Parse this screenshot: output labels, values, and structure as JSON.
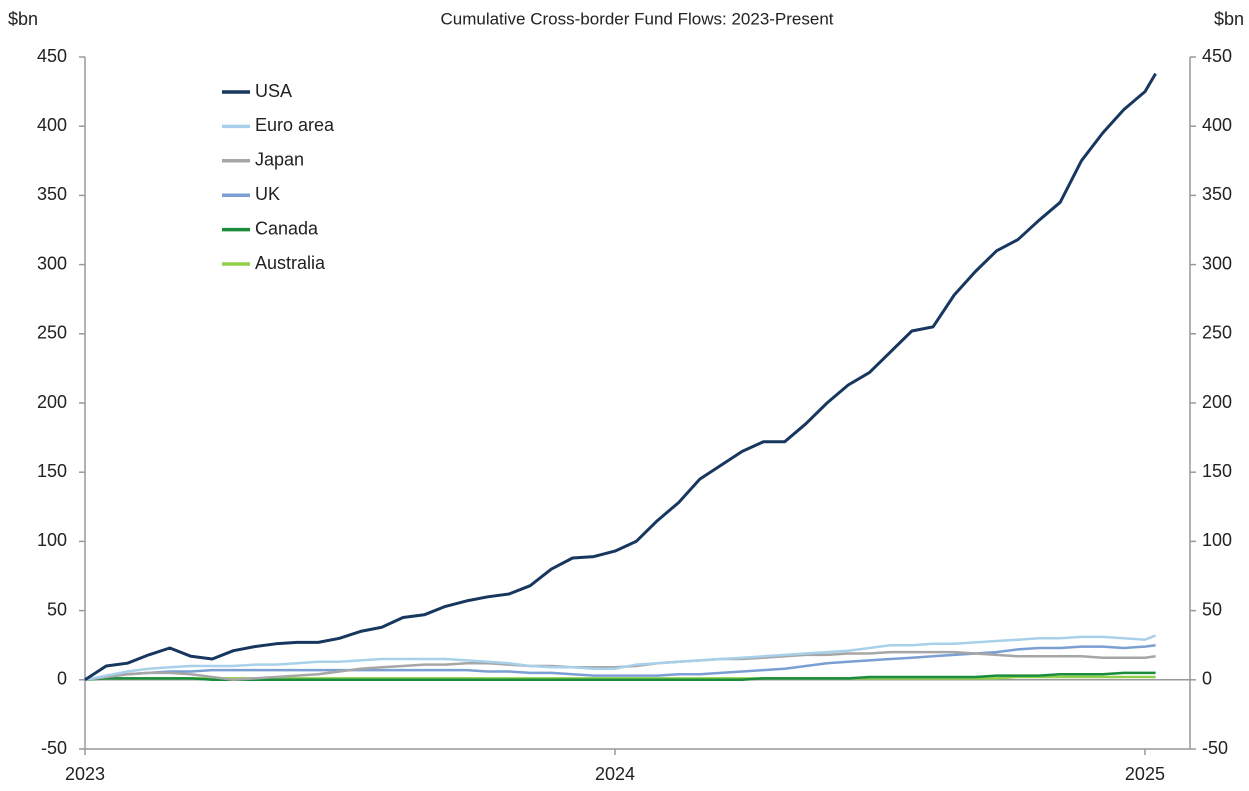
{
  "chart_data": {
    "type": "line",
    "title": "Cumulative Cross-border Fund Flows: 2023-Present",
    "y_label": "$bn",
    "y2_label": "$bn",
    "x": [
      2023,
      2023.04,
      2023.08,
      2023.12,
      2023.16,
      2023.2,
      2023.24,
      2023.28,
      2023.32,
      2023.36,
      2023.4,
      2023.44,
      2023.48,
      2023.52,
      2023.56,
      2023.6,
      2023.64,
      2023.68,
      2023.72,
      2023.76,
      2023.8,
      2023.84,
      2023.88,
      2023.92,
      2023.96,
      2024,
      2024.04,
      2024.08,
      2024.12,
      2024.16,
      2024.2,
      2024.24,
      2024.28,
      2024.32,
      2024.36,
      2024.4,
      2024.44,
      2024.48,
      2024.52,
      2024.56,
      2024.6,
      2024.64,
      2024.68,
      2024.72,
      2024.76,
      2024.8,
      2024.84,
      2024.88,
      2024.92,
      2024.96,
      2025,
      2025.02
    ],
    "xlim": [
      2023,
      2025.085
    ],
    "xticks": [
      2023,
      2024,
      2025
    ],
    "ylim": [
      -50,
      450
    ],
    "yticks": [
      -50,
      0,
      50,
      100,
      150,
      200,
      250,
      300,
      350,
      400,
      450
    ],
    "y2lim": [
      -50,
      450
    ],
    "y2ticks": [
      -50,
      0,
      50,
      100,
      150,
      200,
      250,
      300,
      350,
      400,
      450
    ],
    "legend": "upper left",
    "series": [
      {
        "name": "USA",
        "color": "#17375e",
        "values": [
          0,
          10,
          12,
          18,
          23,
          17,
          15,
          21,
          24,
          26,
          27,
          27,
          30,
          35,
          38,
          45,
          47,
          53,
          57,
          60,
          62,
          68,
          80,
          88,
          89,
          93,
          100,
          115,
          128,
          145,
          155,
          165,
          172,
          172,
          185,
          200,
          213,
          222,
          237,
          252,
          255,
          278,
          295,
          310,
          318,
          332,
          345,
          375,
          395,
          412,
          425,
          438
        ]
      },
      {
        "name": "Euro area",
        "color": "#a9d0ea",
        "values": [
          0,
          3,
          6,
          8,
          9,
          10,
          10,
          10,
          11,
          11,
          12,
          13,
          13,
          14,
          15,
          15,
          15,
          15,
          14,
          13,
          12,
          10,
          9,
          9,
          8,
          8,
          11,
          12,
          13,
          14,
          15,
          16,
          17,
          18,
          19,
          20,
          21,
          23,
          25,
          25,
          26,
          26,
          27,
          28,
          29,
          30,
          30,
          31,
          31,
          30,
          29,
          32
        ]
      },
      {
        "name": "Japan",
        "color": "#a6a6a6",
        "values": [
          0,
          2,
          4,
          5,
          5,
          4,
          2,
          0,
          1,
          2,
          3,
          4,
          6,
          8,
          9,
          10,
          11,
          11,
          12,
          12,
          11,
          10,
          10,
          9,
          9,
          9,
          10,
          12,
          13,
          14,
          15,
          15,
          16,
          17,
          18,
          18,
          19,
          19,
          20,
          20,
          20,
          20,
          19,
          18,
          17,
          17,
          17,
          17,
          16,
          16,
          16,
          17
        ]
      },
      {
        "name": "UK",
        "color": "#7b9fd2",
        "values": [
          0,
          2,
          4,
          5,
          6,
          6,
          7,
          7,
          7,
          7,
          7,
          7,
          7,
          7,
          7,
          7,
          7,
          7,
          7,
          6,
          6,
          5,
          5,
          4,
          3,
          3,
          3,
          3,
          4,
          4,
          5,
          6,
          7,
          8,
          10,
          12,
          13,
          14,
          15,
          16,
          17,
          18,
          19,
          20,
          22,
          23,
          23,
          24,
          24,
          23,
          24,
          25
        ]
      },
      {
        "name": "Canada",
        "color": "#1a8c3c",
        "values": [
          0,
          1,
          1,
          1,
          1,
          1,
          0,
          0,
          0,
          0,
          0,
          0,
          0,
          0,
          0,
          0,
          0,
          0,
          0,
          0,
          0,
          0,
          0,
          0,
          0,
          0,
          0,
          0,
          0,
          0,
          0,
          0,
          1,
          1,
          1,
          1,
          1,
          2,
          2,
          2,
          2,
          2,
          2,
          3,
          3,
          3,
          4,
          4,
          4,
          5,
          5,
          5
        ]
      },
      {
        "name": "Australia",
        "color": "#8fcf4a",
        "values": [
          0,
          1,
          1,
          1,
          1,
          1,
          1,
          1,
          1,
          1,
          1,
          1,
          1,
          1,
          1,
          1,
          1,
          1,
          1,
          1,
          1,
          1,
          1,
          1,
          1,
          1,
          1,
          1,
          1,
          1,
          1,
          1,
          1,
          1,
          1,
          1,
          1,
          1,
          1,
          1,
          1,
          1,
          1,
          1,
          2,
          2,
          2,
          2,
          2,
          2,
          2,
          2
        ]
      }
    ]
  }
}
